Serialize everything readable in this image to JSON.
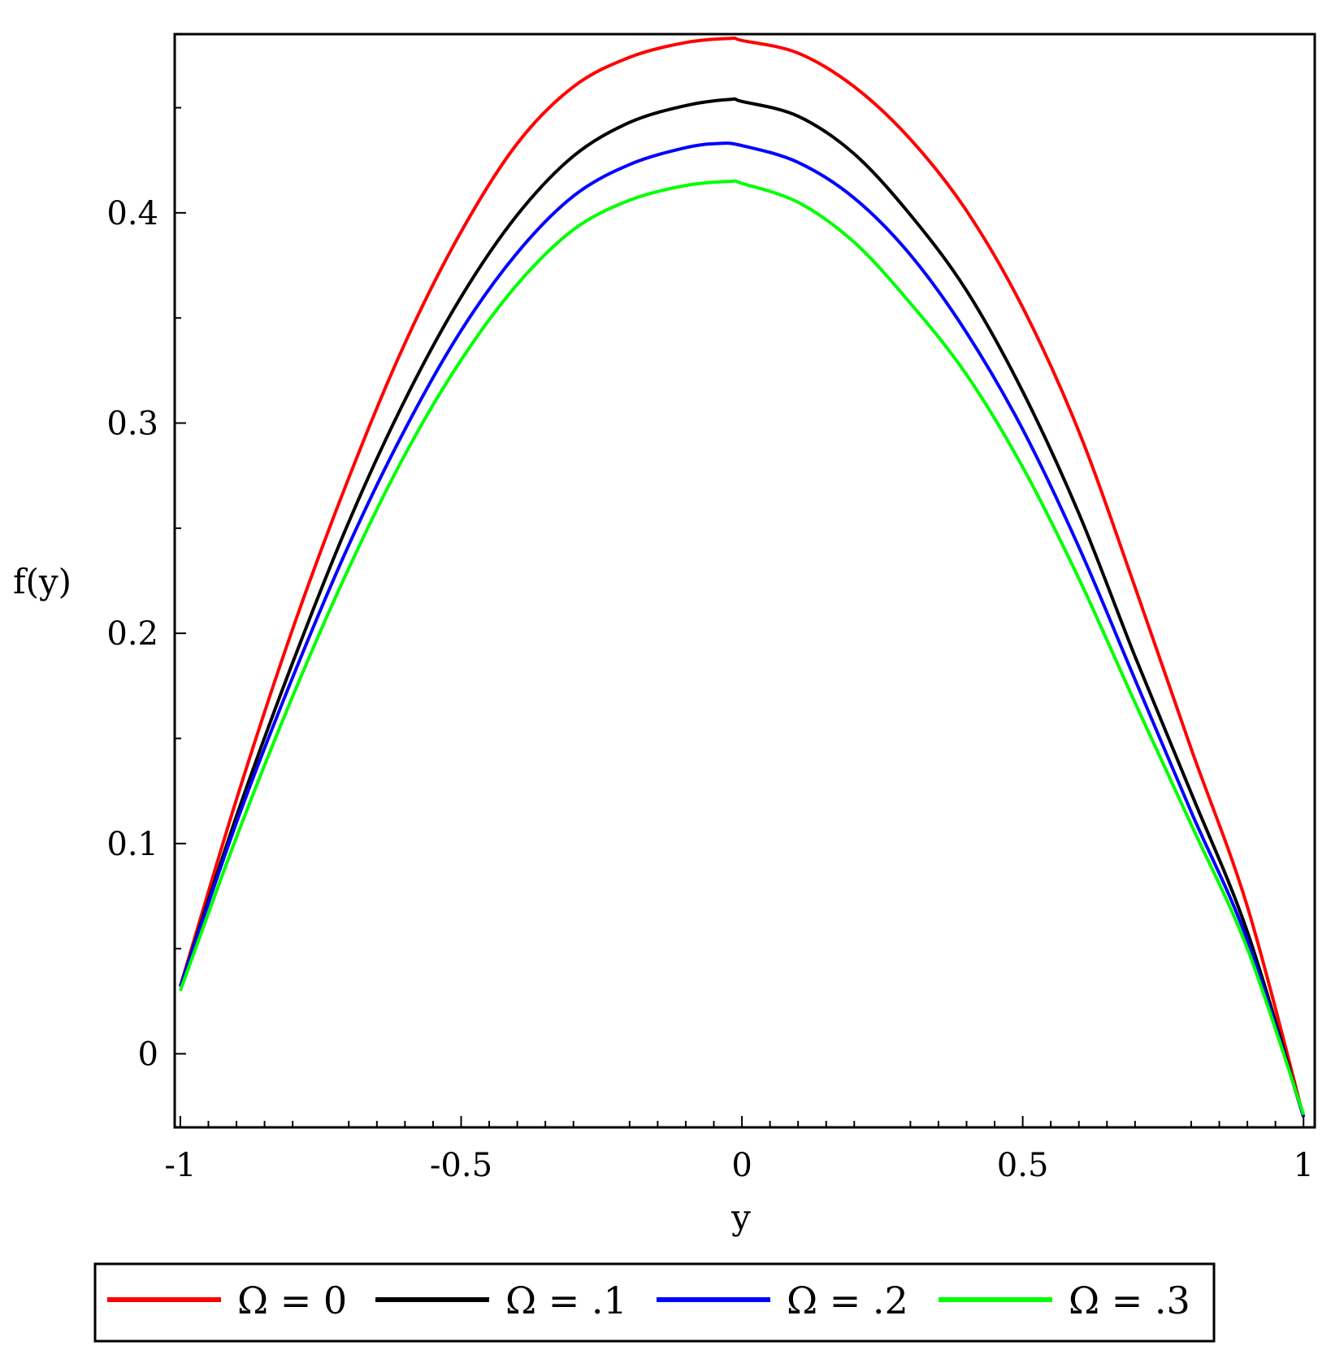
{
  "chart_data": {
    "type": "line",
    "title": "",
    "xlabel": "y",
    "ylabel": "f(y)",
    "xlim": [
      -1.01,
      1.02
    ],
    "ylim": [
      -0.035,
      0.485
    ],
    "grid": false,
    "legend_position": "bottom",
    "x_ticks": [
      {
        "value": -1,
        "label": "-1"
      },
      {
        "value": -0.5,
        "label": "-0.5"
      },
      {
        "value": 0,
        "label": "0"
      },
      {
        "value": 0.5,
        "label": "0.5"
      },
      {
        "value": 1,
        "label": "1"
      }
    ],
    "y_ticks": [
      {
        "value": 0,
        "label": "0"
      },
      {
        "value": 0.1,
        "label": "0.1"
      },
      {
        "value": 0.2,
        "label": "0.2"
      },
      {
        "value": 0.3,
        "label": "0.3"
      },
      {
        "value": 0.4,
        "label": "0.4"
      }
    ],
    "series": [
      {
        "name": "Ω = 0",
        "color": "#ff0000",
        "points": [
          [
            -1.0,
            0.032
          ],
          [
            -0.9,
            0.121
          ],
          [
            -0.8,
            0.202
          ],
          [
            -0.7,
            0.274
          ],
          [
            -0.6,
            0.338
          ],
          [
            -0.5,
            0.391
          ],
          [
            -0.4,
            0.433
          ],
          [
            -0.3,
            0.46
          ],
          [
            -0.2,
            0.474
          ],
          [
            -0.1,
            0.481
          ],
          [
            -0.02,
            0.483
          ],
          [
            0.0,
            0.482
          ],
          [
            0.1,
            0.476
          ],
          [
            0.2,
            0.46
          ],
          [
            0.3,
            0.435
          ],
          [
            0.4,
            0.401
          ],
          [
            0.5,
            0.355
          ],
          [
            0.6,
            0.296
          ],
          [
            0.7,
            0.222
          ],
          [
            0.8,
            0.145
          ],
          [
            0.9,
            0.07
          ],
          [
            1.0,
            -0.03
          ]
        ]
      },
      {
        "name": "Ω = .1",
        "color": "#000000",
        "points": [
          [
            -1.0,
            0.032
          ],
          [
            -0.9,
            0.113
          ],
          [
            -0.8,
            0.186
          ],
          [
            -0.7,
            0.253
          ],
          [
            -0.6,
            0.311
          ],
          [
            -0.5,
            0.36
          ],
          [
            -0.4,
            0.399
          ],
          [
            -0.3,
            0.427
          ],
          [
            -0.2,
            0.443
          ],
          [
            -0.1,
            0.451
          ],
          [
            -0.02,
            0.454
          ],
          [
            0.0,
            0.453
          ],
          [
            0.1,
            0.446
          ],
          [
            0.2,
            0.428
          ],
          [
            0.3,
            0.399
          ],
          [
            0.4,
            0.363
          ],
          [
            0.5,
            0.315
          ],
          [
            0.6,
            0.257
          ],
          [
            0.7,
            0.189
          ],
          [
            0.8,
            0.124
          ],
          [
            0.9,
            0.058
          ],
          [
            1.0,
            -0.03
          ]
        ]
      },
      {
        "name": "Ω = .2",
        "color": "#0000ff",
        "points": [
          [
            -1.0,
            0.032
          ],
          [
            -0.9,
            0.11
          ],
          [
            -0.8,
            0.179
          ],
          [
            -0.7,
            0.242
          ],
          [
            -0.6,
            0.297
          ],
          [
            -0.5,
            0.344
          ],
          [
            -0.4,
            0.381
          ],
          [
            -0.3,
            0.408
          ],
          [
            -0.2,
            0.423
          ],
          [
            -0.1,
            0.431
          ],
          [
            -0.04,
            0.433
          ],
          [
            0.0,
            0.432
          ],
          [
            0.1,
            0.424
          ],
          [
            0.2,
            0.407
          ],
          [
            0.3,
            0.38
          ],
          [
            0.4,
            0.343
          ],
          [
            0.5,
            0.297
          ],
          [
            0.6,
            0.241
          ],
          [
            0.7,
            0.178
          ],
          [
            0.8,
            0.115
          ],
          [
            0.9,
            0.054
          ],
          [
            1.0,
            -0.03
          ]
        ]
      },
      {
        "name": "Ω = .3",
        "color": "#00ff00",
        "points": [
          [
            -1.0,
            0.03
          ],
          [
            -0.9,
            0.103
          ],
          [
            -0.8,
            0.17
          ],
          [
            -0.7,
            0.231
          ],
          [
            -0.6,
            0.285
          ],
          [
            -0.5,
            0.33
          ],
          [
            -0.4,
            0.366
          ],
          [
            -0.3,
            0.392
          ],
          [
            -0.2,
            0.406
          ],
          [
            -0.1,
            0.413
          ],
          [
            -0.02,
            0.415
          ],
          [
            0.0,
            0.414
          ],
          [
            0.1,
            0.405
          ],
          [
            0.2,
            0.386
          ],
          [
            0.3,
            0.357
          ],
          [
            0.4,
            0.323
          ],
          [
            0.5,
            0.279
          ],
          [
            0.6,
            0.226
          ],
          [
            0.7,
            0.167
          ],
          [
            0.8,
            0.109
          ],
          [
            0.9,
            0.05
          ],
          [
            1.0,
            -0.029
          ]
        ]
      }
    ]
  }
}
